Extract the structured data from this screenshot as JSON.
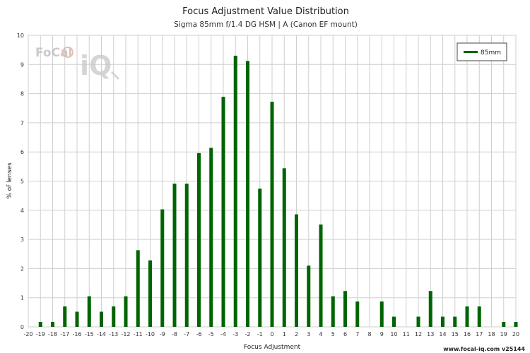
{
  "chart_data": {
    "type": "bar",
    "title": "Focus Adjustment Value Distribution",
    "subtitle": "Sigma 85mm f/1.4 DG HSM | A (Canon EF mount)",
    "xlabel": "Focus Adjustment",
    "ylabel": "% of lenses",
    "xlim": [
      -20,
      20
    ],
    "ylim": [
      0,
      10
    ],
    "x_ticks": [
      -20,
      -19,
      -18,
      -17,
      -16,
      -15,
      -14,
      -13,
      -12,
      -11,
      -10,
      -9,
      -8,
      -7,
      -6,
      -5,
      -4,
      -3,
      -2,
      -1,
      0,
      1,
      2,
      3,
      4,
      5,
      6,
      7,
      8,
      9,
      10,
      11,
      12,
      13,
      14,
      15,
      16,
      17,
      18,
      19,
      20
    ],
    "y_ticks": [
      0,
      1,
      2,
      3,
      4,
      5,
      6,
      7,
      8,
      9,
      10
    ],
    "grid": true,
    "legend_position": "top-right",
    "series": [
      {
        "name": "85mm",
        "color": "#006400",
        "x": [
          -19,
          -18,
          -17,
          -16,
          -15,
          -14,
          -13,
          -12,
          -11,
          -10,
          -9,
          -8,
          -7,
          -6,
          -5,
          -4,
          -3,
          -2,
          -1,
          0,
          1,
          2,
          3,
          4,
          5,
          6,
          7,
          9,
          10,
          12,
          13,
          14,
          15,
          16,
          17,
          19,
          20
        ],
        "values": [
          0.17,
          0.17,
          0.7,
          0.52,
          1.05,
          0.52,
          0.7,
          1.05,
          2.63,
          2.28,
          4.03,
          4.91,
          4.91,
          5.96,
          6.14,
          7.89,
          9.3,
          9.12,
          4.74,
          7.72,
          5.44,
          3.86,
          2.1,
          3.51,
          1.05,
          1.23,
          0.87,
          0.87,
          0.35,
          0.35,
          1.23,
          0.35,
          0.35,
          0.7,
          0.7,
          0.17,
          0.17
        ]
      }
    ]
  },
  "brand": {
    "logo_text_1": "FoCal",
    "logo_text_2": "iQ",
    "footer": "www.focal-iq.com  v25144"
  }
}
